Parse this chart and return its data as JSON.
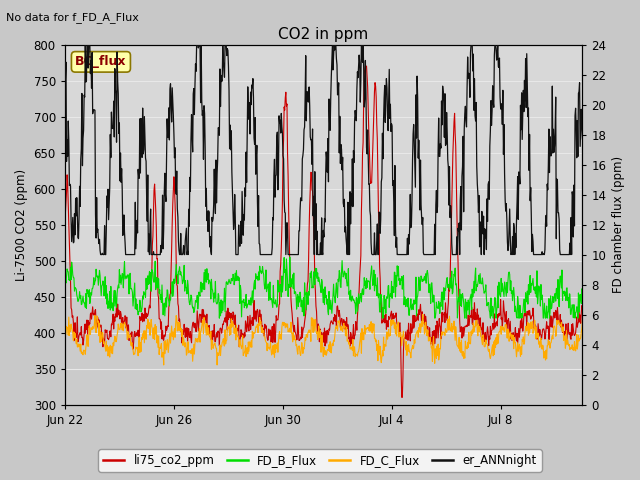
{
  "title": "CO2 in ppm",
  "top_left_text": "No data for f_FD_A_Flux",
  "ylabel_left": "Li-7500 CO2 (ppm)",
  "ylabel_right": "FD chamber flux (ppm)",
  "ylim_left": [
    300,
    800
  ],
  "ylim_right": [
    0,
    24
  ],
  "xtick_labels": [
    "Jun 22",
    "Jun 26",
    "Jun 30",
    "Jul 4",
    "Jul 8"
  ],
  "xtick_positions": [
    0,
    4,
    8,
    12,
    16
  ],
  "yticks_left": [
    300,
    350,
    400,
    450,
    500,
    550,
    600,
    650,
    700,
    750,
    800
  ],
  "yticks_right": [
    0,
    2,
    4,
    6,
    8,
    10,
    12,
    14,
    16,
    18,
    20,
    22,
    24
  ],
  "fig_bg_color": "#c8c8c8",
  "plot_bg_top_color": "#d8d8d8",
  "plot_bg_bot_color": "#c8c8c8",
  "grid_color": "#e8e8e8",
  "bc_flux_box_color": "#ffffaa",
  "bc_flux_box_edge": "#8b7700",
  "bc_flux_text_color": "#8b0000",
  "line_colors": {
    "li75": "#cc0000",
    "FD_B": "#00dd00",
    "FD_C": "#ffaa00",
    "er_ANN": "#111111"
  },
  "legend_entries": [
    "li75_co2_ppm",
    "FD_B_Flux",
    "FD_C_Flux",
    "er_ANNnight"
  ],
  "xlim": [
    0,
    19
  ]
}
